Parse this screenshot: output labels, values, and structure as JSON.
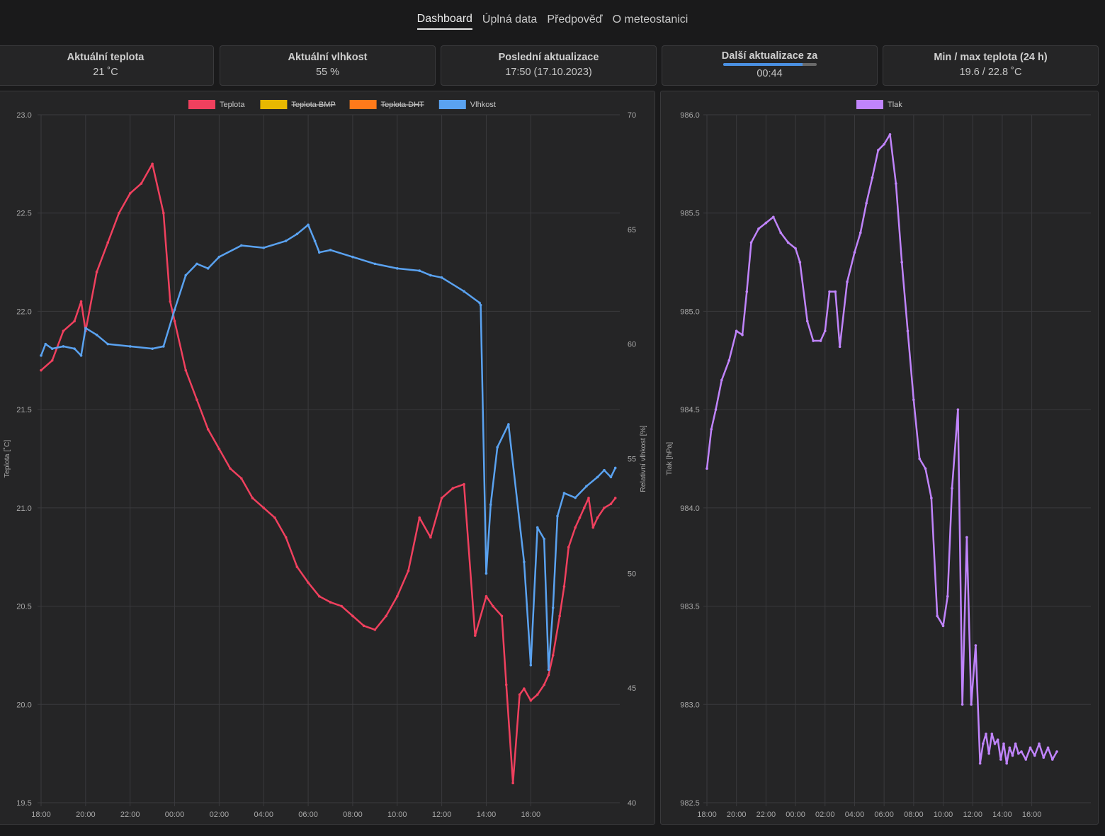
{
  "nav": {
    "items": [
      {
        "label": "Dashboard",
        "active": true
      },
      {
        "label": "Úplná data",
        "active": false
      },
      {
        "label": "Předpověď",
        "active": false
      },
      {
        "label": "O meteostanici",
        "active": false
      }
    ]
  },
  "cards": {
    "temp": {
      "title": "Aktuální teplota",
      "value": "21 ˚C"
    },
    "hum": {
      "title": "Aktuální vlhkost",
      "value": "55 %"
    },
    "last": {
      "title": "Poslední aktualizace",
      "value": "17:50 (17.10.2023)"
    },
    "next": {
      "title": "Další aktualizace za",
      "value": "00:44",
      "progress": 0.85
    },
    "minmax": {
      "title": "Min / max teplota (24 h)",
      "value": "19.6 / 22.8 ˚C"
    }
  },
  "colors": {
    "teplota": "#f0405e",
    "teplota_bmp": "#e8b800",
    "teplota_dht": "#ff7a1a",
    "vlhkost": "#5aa2f0",
    "tlak": "#c084fc",
    "accent": "#4a90e2"
  },
  "chart_data": [
    {
      "type": "line",
      "x_ticks": [
        "18:00",
        "20:00",
        "22:00",
        "00:00",
        "02:00",
        "04:00",
        "06:00",
        "08:00",
        "10:00",
        "12:00",
        "14:00",
        "16:00"
      ],
      "y_ticks": [
        "23.0",
        "22.5",
        "22.0",
        "21.5",
        "21.0",
        "20.5",
        "20.0",
        "19.5"
      ],
      "y2_ticks": [
        "70",
        "65",
        "60",
        "55",
        "50",
        "45",
        "40"
      ],
      "ylabel": "Teplota [˚C]",
      "y2label": "Relativní vlhkost [%]",
      "ylim": [
        19.5,
        23.0
      ],
      "y2lim": [
        40,
        70
      ],
      "legend": [
        {
          "name": "Teplota",
          "color": "#f0405e",
          "hidden": false
        },
        {
          "name": "Teplota BMP",
          "color": "#e8b800",
          "hidden": true
        },
        {
          "name": "Teplota DHT",
          "color": "#ff7a1a",
          "hidden": true
        },
        {
          "name": "Vlhkost",
          "color": "#5aa2f0",
          "hidden": false
        }
      ],
      "series": [
        {
          "name": "Teplota",
          "axis": "y",
          "x": [
            18.0,
            18.5,
            19.0,
            19.5,
            19.8,
            20.0,
            20.5,
            21.0,
            21.5,
            22.0,
            22.5,
            23.0,
            23.5,
            23.8,
            24.0,
            24.5,
            25.0,
            25.5,
            26.0,
            26.5,
            27.0,
            27.5,
            28.0,
            28.5,
            29.0,
            29.5,
            30.0,
            30.5,
            31.0,
            31.5,
            32.0,
            32.5,
            33.0,
            33.5,
            34.0,
            34.5,
            35.0,
            35.5,
            36.0,
            36.5,
            37.0,
            37.5,
            38.0,
            38.3,
            38.7,
            38.9,
            39.2,
            39.5,
            39.7,
            40.0,
            40.3,
            40.6,
            40.8,
            41.0,
            41.3,
            41.5,
            41.7,
            42.0,
            42.2,
            42.4,
            42.6,
            42.8,
            43.0,
            43.3,
            43.6,
            43.8
          ],
          "y": [
            21.7,
            21.75,
            21.9,
            21.95,
            22.05,
            21.9,
            22.2,
            22.35,
            22.5,
            22.6,
            22.65,
            22.75,
            22.5,
            22.05,
            21.95,
            21.7,
            21.55,
            21.4,
            21.3,
            21.2,
            21.15,
            21.05,
            21.0,
            20.95,
            20.85,
            20.7,
            20.62,
            20.55,
            20.52,
            20.5,
            20.45,
            20.4,
            20.38,
            20.45,
            20.55,
            20.68,
            20.95,
            20.85,
            21.05,
            21.1,
            21.12,
            20.35,
            20.55,
            20.5,
            20.45,
            20.1,
            19.6,
            20.05,
            20.08,
            20.02,
            20.05,
            20.1,
            20.15,
            20.25,
            20.45,
            20.6,
            20.8,
            20.9,
            20.95,
            21.0,
            21.05,
            20.9,
            20.95,
            21.0,
            21.02,
            21.05
          ]
        },
        {
          "name": "Vlhkost",
          "axis": "y2",
          "x": [
            18.0,
            18.2,
            18.5,
            19.0,
            19.5,
            19.8,
            20.0,
            20.5,
            21.0,
            22.0,
            23.0,
            23.5,
            24.0,
            24.5,
            25.0,
            25.5,
            26.0,
            27.0,
            28.0,
            29.0,
            29.5,
            30.0,
            30.3,
            30.5,
            31.0,
            32.0,
            33.0,
            34.0,
            35.0,
            35.5,
            36.0,
            37.0,
            37.7,
            37.75,
            38.0,
            38.2,
            38.5,
            39.0,
            39.7,
            40.0,
            40.3,
            40.6,
            40.8,
            41.0,
            41.2,
            41.5,
            42.0,
            42.5,
            43.0,
            43.3,
            43.6,
            43.8
          ],
          "y": [
            59.5,
            60.0,
            59.8,
            59.9,
            59.8,
            59.5,
            60.7,
            60.4,
            60.0,
            59.9,
            59.8,
            59.9,
            61.5,
            63.0,
            63.5,
            63.3,
            63.8,
            64.3,
            64.2,
            64.5,
            64.8,
            65.2,
            64.5,
            64.0,
            64.1,
            63.8,
            63.5,
            63.3,
            63.2,
            63.0,
            62.9,
            62.3,
            61.8,
            61.7,
            50.0,
            53.0,
            55.5,
            56.5,
            50.5,
            46.0,
            52.0,
            51.5,
            45.8,
            48.5,
            52.5,
            53.5,
            53.3,
            53.8,
            54.2,
            54.5,
            54.2,
            54.6
          ]
        }
      ]
    },
    {
      "type": "line",
      "x_ticks": [
        "18:00",
        "20:00",
        "22:00",
        "00:00",
        "02:00",
        "04:00",
        "06:00",
        "08:00",
        "10:00",
        "12:00",
        "14:00",
        "16:00"
      ],
      "y_ticks": [
        "986.0",
        "985.5",
        "985.0",
        "984.5",
        "984.0",
        "983.5",
        "983.0",
        "982.5"
      ],
      "ylabel": "Tlak [hPa]",
      "ylim": [
        982.5,
        986.0
      ],
      "legend": [
        {
          "name": "Tlak",
          "color": "#c084fc",
          "hidden": false
        }
      ],
      "series": [
        {
          "name": "Tlak",
          "x": [
            18.0,
            18.3,
            18.6,
            19.0,
            19.5,
            20.0,
            20.4,
            20.7,
            21.0,
            21.5,
            22.0,
            22.5,
            23.0,
            23.5,
            24.0,
            24.3,
            24.8,
            25.2,
            25.7,
            26.0,
            26.3,
            26.7,
            27.0,
            27.5,
            28.0,
            28.4,
            28.8,
            29.2,
            29.6,
            30.0,
            30.4,
            30.8,
            31.2,
            31.6,
            32.0,
            32.4,
            32.8,
            33.2,
            33.6,
            34.0,
            34.3,
            34.6,
            35.0,
            35.3,
            35.6,
            35.9,
            36.2,
            36.5,
            36.7,
            36.9,
            37.1,
            37.3,
            37.5,
            37.7,
            37.9,
            38.1,
            38.3,
            38.5,
            38.7,
            38.9,
            39.1,
            39.3,
            39.6,
            39.9,
            40.2,
            40.5,
            40.8,
            41.1,
            41.4,
            41.7
          ],
          "y": [
            984.2,
            984.4,
            984.5,
            984.65,
            984.75,
            984.9,
            984.88,
            985.1,
            985.35,
            985.42,
            985.45,
            985.48,
            985.4,
            985.35,
            985.32,
            985.25,
            984.95,
            984.85,
            984.85,
            984.9,
            985.1,
            985.1,
            984.82,
            985.15,
            985.3,
            985.4,
            985.55,
            985.68,
            985.82,
            985.85,
            985.9,
            985.65,
            985.25,
            984.9,
            984.55,
            984.25,
            984.2,
            984.05,
            983.45,
            983.4,
            983.55,
            984.1,
            984.5,
            983.0,
            983.85,
            983.0,
            983.3,
            982.7,
            982.8,
            982.85,
            982.75,
            982.85,
            982.8,
            982.82,
            982.72,
            982.8,
            982.7,
            982.78,
            982.74,
            982.8,
            982.75,
            982.76,
            982.72,
            982.78,
            982.74,
            982.8,
            982.73,
            982.78,
            982.72,
            982.76
          ]
        }
      ]
    }
  ]
}
